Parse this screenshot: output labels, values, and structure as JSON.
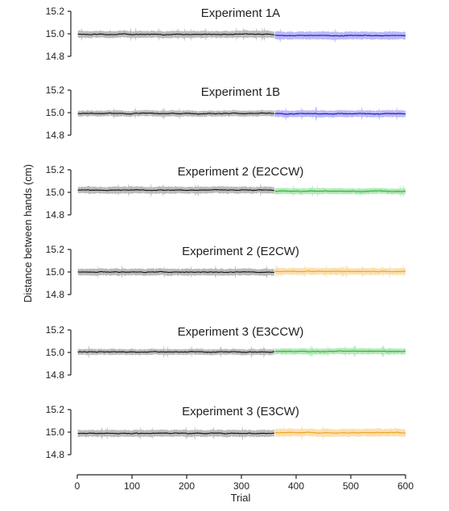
{
  "figure": {
    "ylabel": "Distance between hands (cm)",
    "xlabel": "Trial"
  },
  "colors": {
    "baseline_line": "#111111",
    "baseline_band": "#b3b3b3",
    "blue_line": "#1c10d8",
    "blue_band": "#b2b0f4",
    "green_line": "#29b533",
    "green_band": "#a8e6ae",
    "orange_line": "#f0a21c",
    "orange_band": "#f9dda8"
  },
  "chart_data": [
    {
      "type": "line",
      "title": "Experiment 1A",
      "ylim": [
        14.8,
        15.2
      ],
      "yticks": [
        "15.2",
        "15.0",
        "14.8"
      ],
      "xlim": [
        0,
        600
      ],
      "series": [
        {
          "color": "blue",
          "x_range": [
            361,
            600
          ],
          "mean": 14.985,
          "spread": 0.04
        }
      ],
      "baseline": {
        "x_range": [
          1,
          360
        ],
        "mean": 14.995,
        "spread": 0.035
      }
    },
    {
      "type": "line",
      "title": "Experiment 1B",
      "ylim": [
        14.8,
        15.2
      ],
      "yticks": [
        "15.2",
        "15.0",
        "14.8"
      ],
      "xlim": [
        0,
        600
      ],
      "series": [
        {
          "color": "blue",
          "x_range": [
            361,
            600
          ],
          "mean": 14.99,
          "spread": 0.035
        }
      ],
      "baseline": {
        "x_range": [
          1,
          360
        ],
        "mean": 14.993,
        "spread": 0.03
      }
    },
    {
      "type": "line",
      "title": "Experiment 2 (E2CCW)",
      "ylim": [
        14.8,
        15.2
      ],
      "yticks": [
        "15.2",
        "15.0",
        "14.8"
      ],
      "xlim": [
        0,
        600
      ],
      "series": [
        {
          "color": "green",
          "x_range": [
            361,
            600
          ],
          "mean": 15.01,
          "spread": 0.03
        }
      ],
      "baseline": {
        "x_range": [
          1,
          360
        ],
        "mean": 15.02,
        "spread": 0.035
      }
    },
    {
      "type": "line",
      "title": "Experiment 2 (E2CW)",
      "ylim": [
        14.8,
        15.2
      ],
      "yticks": [
        "15.2",
        "15.0",
        "14.8"
      ],
      "xlim": [
        0,
        600
      ],
      "series": [
        {
          "color": "orange",
          "x_range": [
            361,
            600
          ],
          "mean": 15.005,
          "spread": 0.035
        }
      ],
      "baseline": {
        "x_range": [
          1,
          360
        ],
        "mean": 15.0,
        "spread": 0.035
      }
    },
    {
      "type": "line",
      "title": "Experiment 3 (E3CCW)",
      "ylim": [
        14.8,
        15.2
      ],
      "yticks": [
        "15.2",
        "15.0",
        "14.8"
      ],
      "xlim": [
        0,
        600
      ],
      "series": [
        {
          "color": "green",
          "x_range": [
            361,
            600
          ],
          "mean": 15.01,
          "spread": 0.03
        }
      ],
      "baseline": {
        "x_range": [
          1,
          360
        ],
        "mean": 15.005,
        "spread": 0.03
      }
    },
    {
      "type": "line",
      "title": "Experiment 3 (E3CW)",
      "ylim": [
        14.8,
        15.2
      ],
      "yticks": [
        "15.2",
        "15.0",
        "14.8"
      ],
      "xlim": [
        0,
        600
      ],
      "xticks": [
        "0",
        "100",
        "200",
        "300",
        "400",
        "500",
        "600"
      ],
      "series": [
        {
          "color": "orange",
          "x_range": [
            361,
            600
          ],
          "mean": 14.995,
          "spread": 0.04
        }
      ],
      "baseline": {
        "x_range": [
          1,
          360
        ],
        "mean": 14.99,
        "spread": 0.035
      }
    }
  ]
}
